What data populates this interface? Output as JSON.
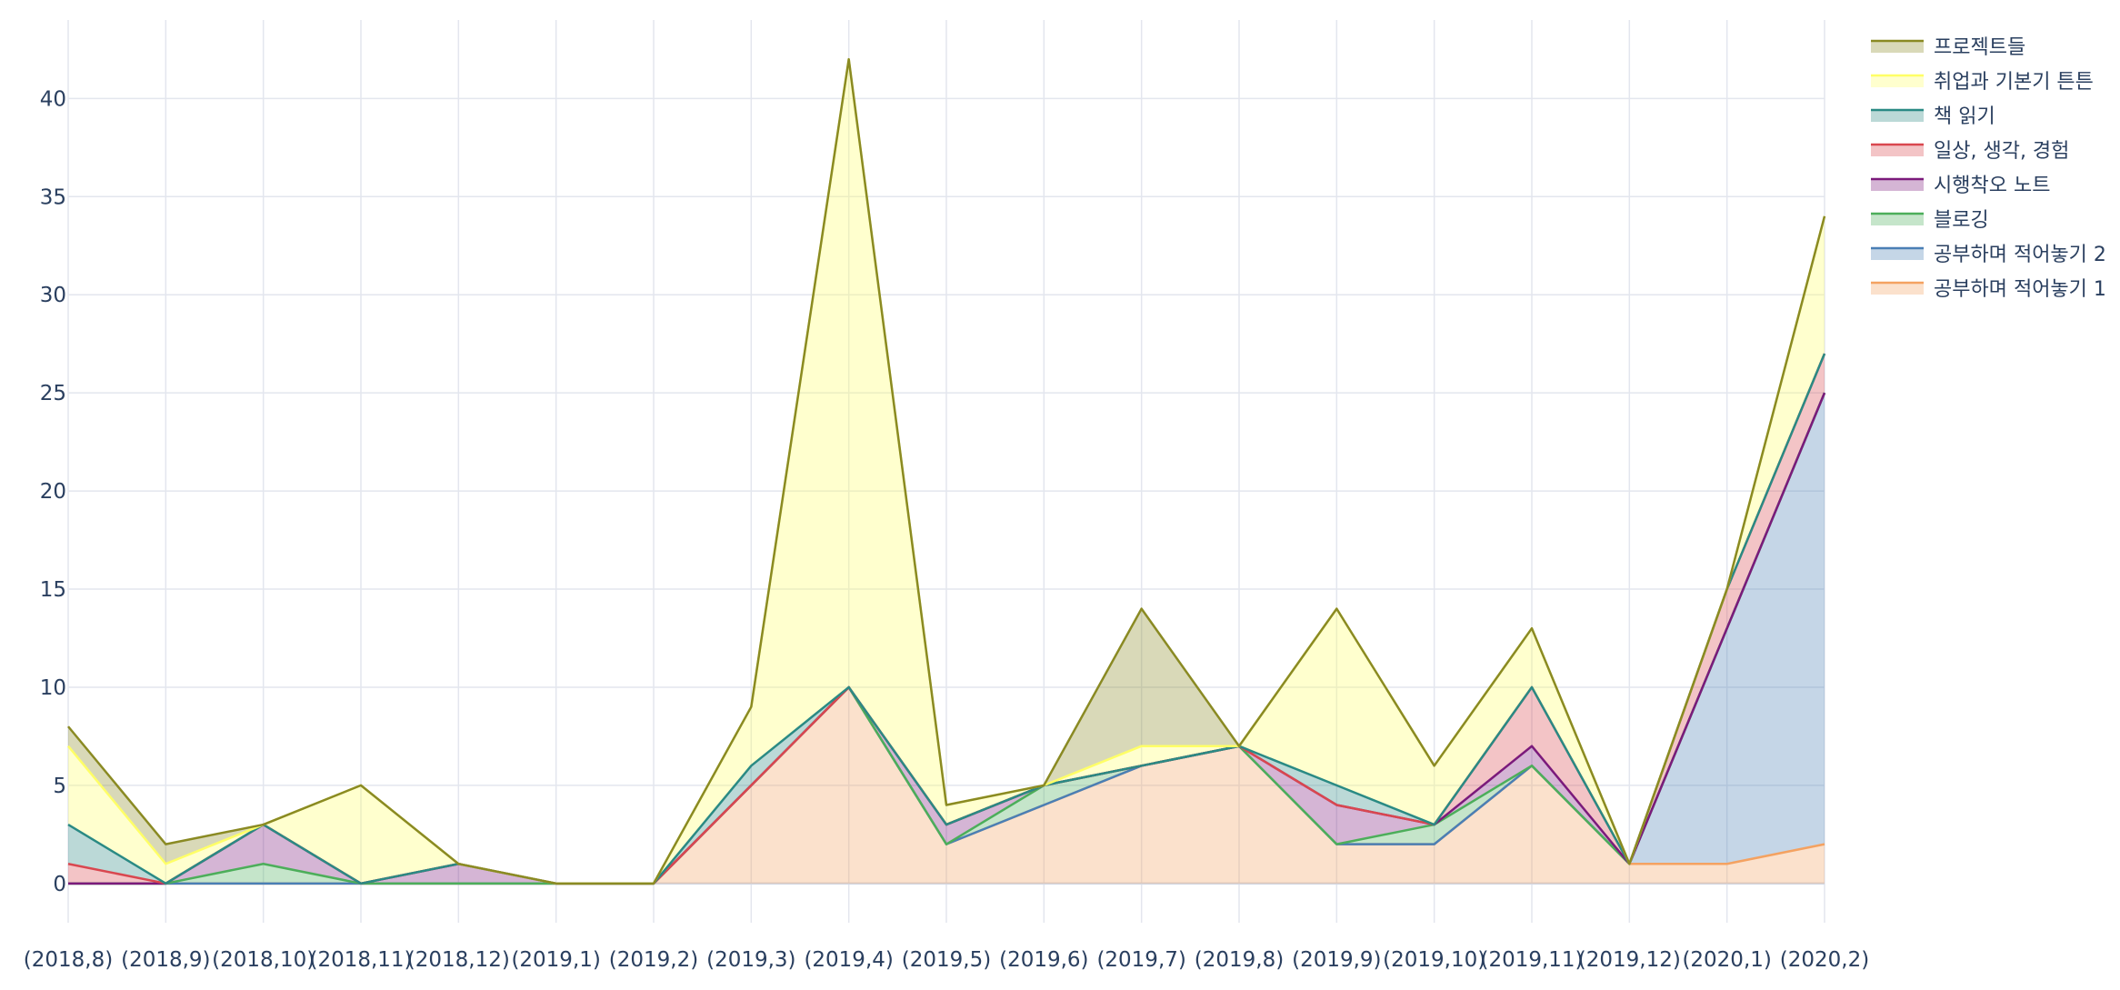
{
  "chart_data": {
    "type": "area",
    "stacked": true,
    "title": "",
    "xlabel": "",
    "ylabel": "",
    "categories": [
      "(2018,8)",
      "(2018,9)",
      "(2018,10)",
      "(2018,11)",
      "(2018,12)",
      "(2019,1)",
      "(2019,2)",
      "(2019,3)",
      "(2019,4)",
      "(2019,5)",
      "(2019,6)",
      "(2019,7)",
      "(2019,8)",
      "(2019,9)",
      "(2019,10)",
      "(2019,11)",
      "(2019,12)",
      "(2020,1)",
      "(2020,2)"
    ],
    "ylim": [
      -2,
      44
    ],
    "yticks": [
      0,
      5,
      10,
      15,
      20,
      25,
      30,
      35,
      40
    ],
    "grid": true,
    "legend_position": "top-right",
    "series": [
      {
        "name": "공부하며 적어놓기 1",
        "color": "#f4a261",
        "values": [
          0,
          0,
          0,
          0,
          0,
          0,
          0,
          5,
          10,
          2,
          4,
          6,
          7,
          2,
          2,
          6,
          1,
          1,
          2
        ]
      },
      {
        "name": "공부하며 적어놓기 2",
        "color": "#4a7fb5",
        "values": [
          0,
          0,
          0,
          0,
          0,
          0,
          0,
          0,
          0,
          0,
          0,
          0,
          0,
          0,
          0,
          0,
          0,
          12,
          23
        ]
      },
      {
        "name": "블로깅",
        "color": "#4cae5a",
        "values": [
          0,
          0,
          1,
          0,
          0,
          0,
          0,
          0,
          0,
          0,
          1,
          0,
          0,
          0,
          1,
          0,
          0,
          0,
          0
        ]
      },
      {
        "name": "시행착오 노트",
        "color": "#7b1a7b",
        "values": [
          0,
          0,
          2,
          0,
          1,
          0,
          0,
          0,
          0,
          1,
          0,
          0,
          0,
          2,
          0,
          1,
          0,
          0,
          0
        ]
      },
      {
        "name": "일상, 생각, 경험",
        "color": "#d9474f",
        "values": [
          1,
          0,
          0,
          0,
          0,
          0,
          0,
          0,
          0,
          0,
          0,
          0,
          0,
          0,
          0,
          3,
          0,
          2,
          2
        ]
      },
      {
        "name": "책 읽기",
        "color": "#2a8a84",
        "values": [
          2,
          0,
          0,
          0,
          0,
          0,
          0,
          1,
          0,
          0,
          0,
          0,
          0,
          1,
          0,
          0,
          0,
          0,
          0
        ]
      },
      {
        "name": "취업과 기본기 튼튼",
        "color": "#ffff66",
        "values": [
          4,
          1,
          0,
          5,
          0,
          0,
          0,
          3,
          32,
          1,
          0,
          1,
          0,
          9,
          3,
          3,
          0,
          0,
          7
        ]
      },
      {
        "name": "프로젝트들",
        "color": "#8a8a23",
        "values": [
          1,
          1,
          0,
          0,
          0,
          0,
          0,
          0,
          0,
          0,
          0,
          7,
          0,
          0,
          0,
          0,
          0,
          0,
          0
        ]
      }
    ]
  }
}
